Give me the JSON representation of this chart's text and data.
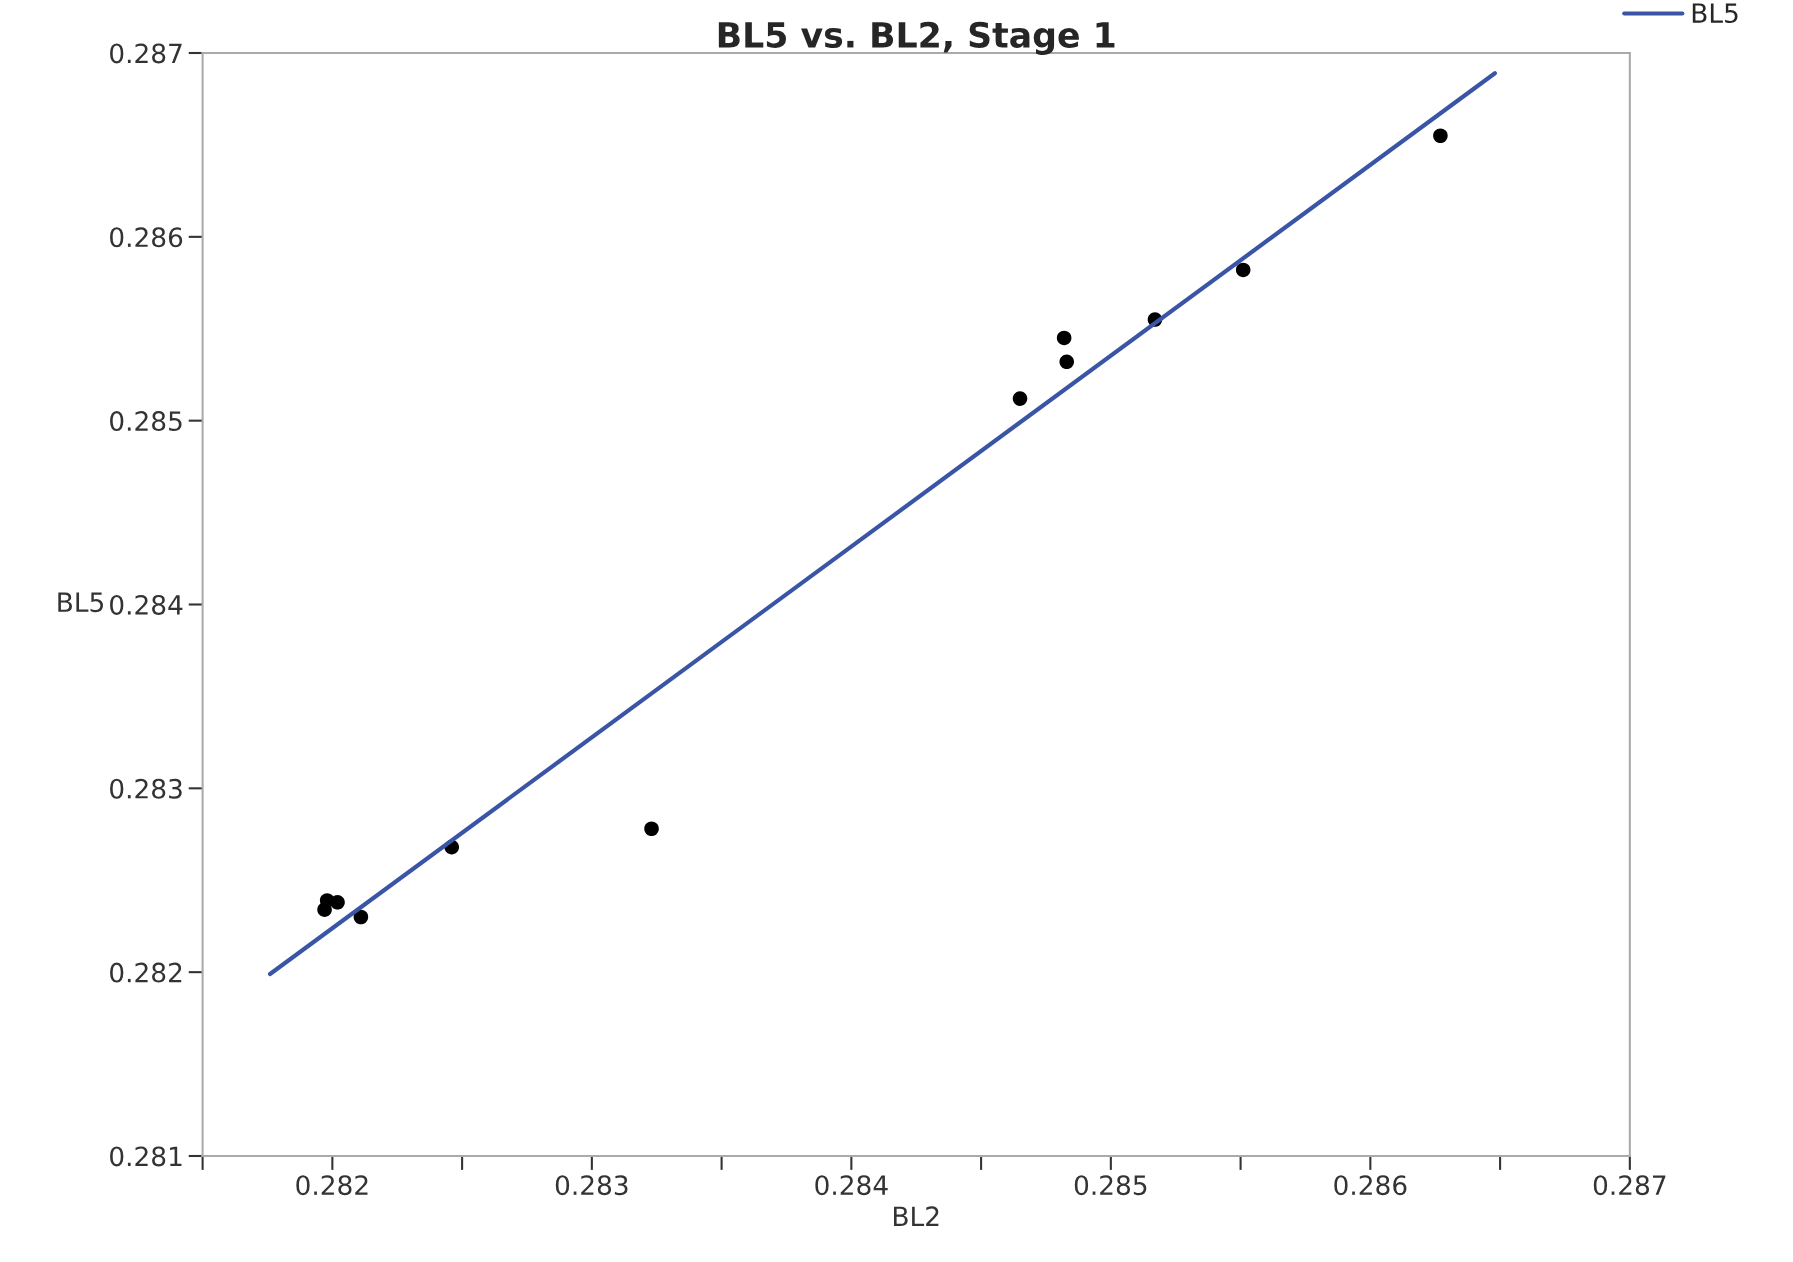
{
  "chart_data": {
    "type": "scatter",
    "title": "BL5 vs. BL2, Stage 1",
    "xlabel": "BL2",
    "ylabel": "BL5",
    "xlim": [
      0.2815,
      0.287
    ],
    "ylim": [
      0.281,
      0.287
    ],
    "xticks": [
      {
        "value": 0.2815,
        "label": null
      },
      0.282,
      {
        "value": 0.2825,
        "label": null
      },
      0.283,
      {
        "value": 0.2835,
        "label": null
      },
      0.284,
      {
        "value": 0.2845,
        "label": null
      },
      0.285,
      {
        "value": 0.2855,
        "label": null
      },
      0.286,
      {
        "value": 0.2865,
        "label": null
      },
      0.287
    ],
    "yticks": [
      0.281,
      0.282,
      0.283,
      0.284,
      0.285,
      0.286,
      0.287
    ],
    "grid": false,
    "legend": "top right",
    "series": [
      {
        "marker": "circle",
        "color": "#000000",
        "x": [
          0.28197,
          0.28198,
          0.28202,
          0.28211,
          0.28246,
          0.28323,
          0.28465,
          0.28482,
          0.28483,
          0.28517,
          0.28551,
          0.28627
        ],
        "values": [
          0.28234,
          0.28239,
          0.28238,
          0.2823,
          0.28268,
          0.28278,
          0.28512,
          0.28545,
          0.28532,
          0.28555,
          0.28582,
          0.28655
        ]
      },
      {
        "type": "line",
        "marker": "none",
        "name": "BL5",
        "color": "#3a55a5",
        "x": [
          0.28176,
          0.28648
        ],
        "values": [
          0.28199,
          0.28689
        ]
      }
    ]
  }
}
